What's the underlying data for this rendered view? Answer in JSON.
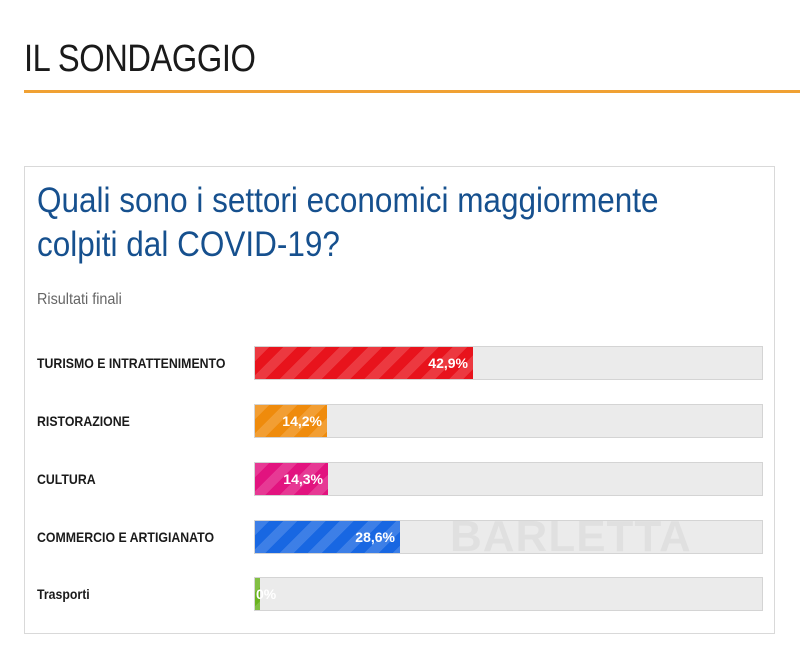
{
  "header": {
    "title": "IL SONDAGGIO",
    "accent_color": "#f0a133"
  },
  "poll": {
    "question": "Quali sono i settori economici maggiormente colpiti dal COVID-19?",
    "subtitle": "Risultati finali",
    "question_color": "#16508e",
    "options": [
      {
        "label": "TURISMO E INTRATTENIMENTO",
        "percent_text": "42,9%",
        "value": 42.9,
        "color": "#e8131c"
      },
      {
        "label": "RISTORAZIONE",
        "percent_text": "14,2%",
        "value": 14.2,
        "color": "#ef8b0c"
      },
      {
        "label": "CULTURA",
        "percent_text": "14,3%",
        "value": 14.3,
        "color": "#e2137f"
      },
      {
        "label": "COMMERCIO E ARTIGIANATO",
        "percent_text": "28,6%",
        "value": 28.6,
        "color": "#1867e2"
      },
      {
        "label": "Trasporti",
        "percent_text": "0%",
        "value": 0,
        "color": "#6ab31f"
      }
    ]
  },
  "watermark": {
    "text": "BARLETTA",
    "icon": "site-logo-icon"
  }
}
